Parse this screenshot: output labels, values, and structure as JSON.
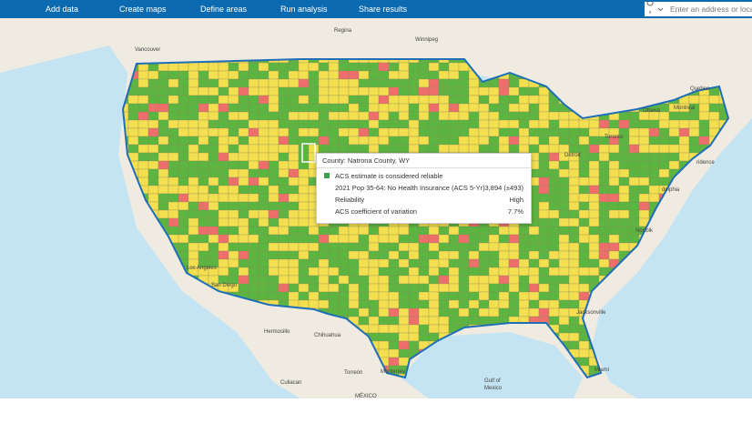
{
  "nav": {
    "items": [
      "Add data",
      "Create maps",
      "Define areas",
      "Run analysis",
      "Share results"
    ],
    "search_placeholder": "Enter an address or location"
  },
  "map": {
    "labels": [
      {
        "text": "Vancouver"
      },
      {
        "text": "Regina"
      },
      {
        "text": "Winnipeg"
      },
      {
        "text": "Quebec"
      },
      {
        "text": "Ottawa"
      },
      {
        "text": "Montreal"
      },
      {
        "text": "Toronto"
      },
      {
        "text": "Detroit"
      },
      {
        "text": "ridence"
      },
      {
        "text": "delphia"
      },
      {
        "text": "Norfolk"
      },
      {
        "text": "Los Angeles"
      },
      {
        "text": "San Diego"
      },
      {
        "text": "Jacksonville"
      },
      {
        "text": "Miami"
      },
      {
        "text": "Hermosillo"
      },
      {
        "text": "Chihuahua"
      },
      {
        "text": "Torreón"
      },
      {
        "text": "Monterrey"
      },
      {
        "text": "Culiacan"
      },
      {
        "text": "MÉXICO"
      },
      {
        "text": "Gulf of"
      },
      {
        "text": "Mexico"
      }
    ]
  },
  "popup": {
    "title": "County: Natrona County, WY",
    "legend": "ACS estimate is considered reliable",
    "rows": [
      [
        "2021 Pop 35-64: No Health Insurance (ACS 5-Yr)",
        "3,894 (±493)"
      ],
      [
        "Reliability",
        "High"
      ],
      [
        "ACS coefficient of variation",
        "7.7%"
      ]
    ]
  }
}
